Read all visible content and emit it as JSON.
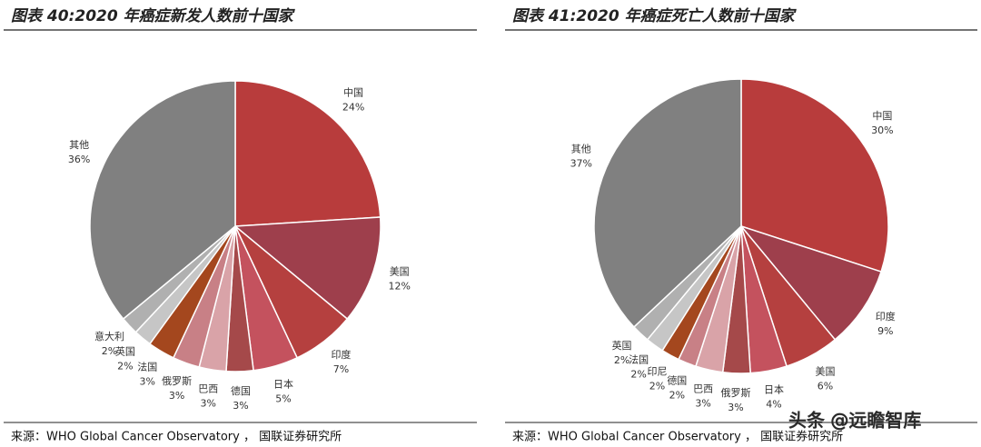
{
  "chart_data": [
    {
      "type": "pie",
      "title": "图表 40:2020 年癌症新发人数前十国家",
      "categories": [
        "中国",
        "美国",
        "印度",
        "日本",
        "德国",
        "巴西",
        "俄罗斯",
        "法国",
        "英国",
        "意大利",
        "其他"
      ],
      "values": [
        24,
        12,
        7,
        5,
        3,
        3,
        3,
        3,
        2,
        2,
        36
      ],
      "value_labels": [
        "24%",
        "12%",
        "7%",
        "5%",
        "3%",
        "3%",
        "3%",
        "3%",
        "2%",
        "2%",
        "36%"
      ],
      "colors": [
        "#b83c3c",
        "#9e3f4c",
        "#b5403f",
        "#c4525e",
        "#a5494a",
        "#d9a3a8",
        "#c88086",
        "#a4471e",
        "#c6c6c6",
        "#b0b0b0",
        "#808080"
      ],
      "source": "来源：WHO Global Cancer Observatory ， 国联证券研究所"
    },
    {
      "type": "pie",
      "title": "图表 41:2020 年癌症死亡人数前十国家",
      "categories": [
        "中国",
        "印度",
        "美国",
        "日本",
        "俄罗斯",
        "巴西",
        "德国",
        "印尼",
        "法国",
        "英国",
        "其他"
      ],
      "values": [
        30,
        9,
        6,
        4,
        3,
        3,
        2,
        2,
        2,
        2,
        37
      ],
      "value_labels": [
        "30%",
        "9%",
        "6%",
        "4%",
        "3%",
        "3%",
        "2%",
        "2%",
        "2%",
        "2%",
        "37%"
      ],
      "colors": [
        "#b83c3c",
        "#9e3f4c",
        "#b5403f",
        "#c4525e",
        "#a5494a",
        "#d9a3a8",
        "#c88086",
        "#a4471e",
        "#c6c6c6",
        "#b0b0b0",
        "#808080"
      ],
      "source": "来源：WHO Global Cancer Observatory ， 国联证券研究所"
    }
  ],
  "watermark": "头条 @远瞻智库"
}
